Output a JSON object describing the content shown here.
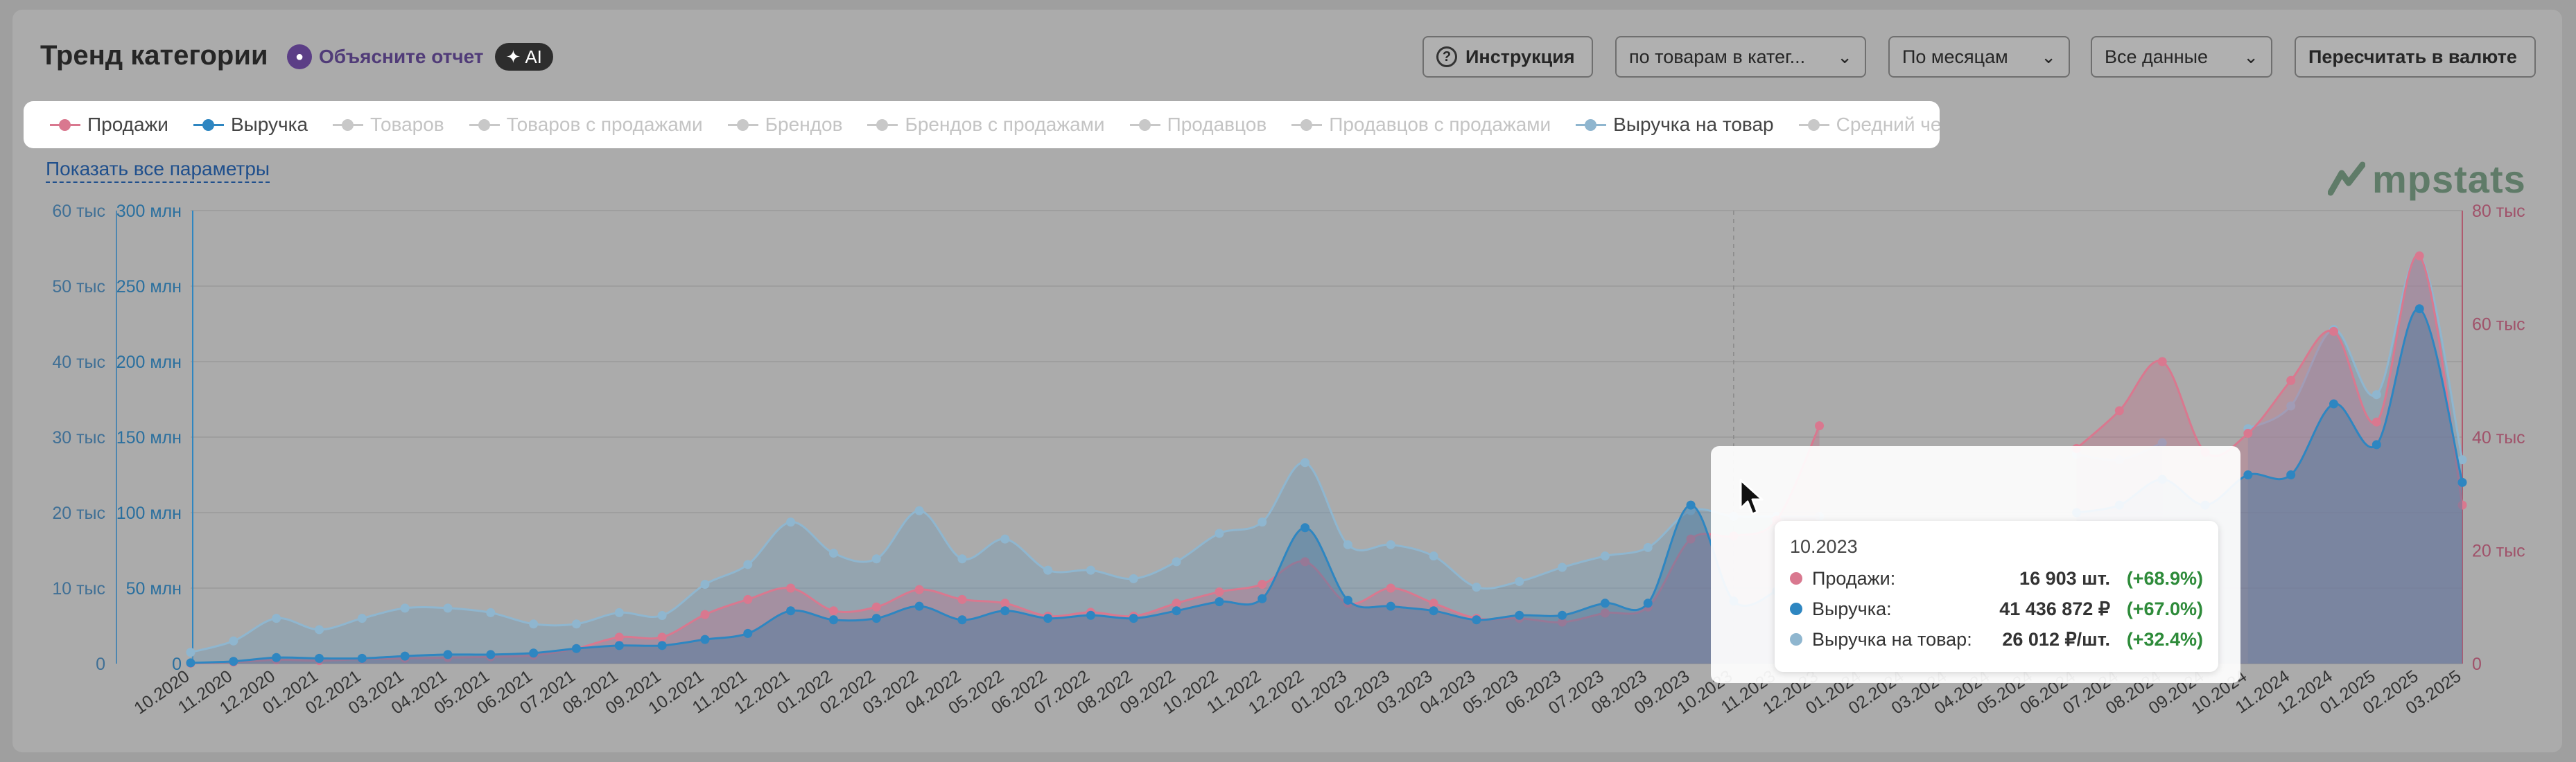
{
  "header": {
    "title": "Тренд категории",
    "explain_label": "Объясните отчет",
    "ai_label": "AI",
    "instruction_label": "Инструкция",
    "group_select": "по товарам в катег...",
    "period_select": "По месяцам",
    "data_select": "Все данные",
    "currency_button": "Пересчитать в валюте"
  },
  "legend": [
    {
      "label": "Продажи",
      "color": "#d9788f",
      "active": true
    },
    {
      "label": "Выручка",
      "color": "#2e86c1",
      "active": true
    },
    {
      "label": "Товаров",
      "color": "#c8c8c8",
      "active": false
    },
    {
      "label": "Товаров с продажами",
      "color": "#c8c8c8",
      "active": false
    },
    {
      "label": "Брендов",
      "color": "#c8c8c8",
      "active": false
    },
    {
      "label": "Брендов с продажами",
      "color": "#c8c8c8",
      "active": false
    },
    {
      "label": "Продавцов",
      "color": "#c8c8c8",
      "active": false
    },
    {
      "label": "Продавцов с продажами",
      "color": "#c8c8c8",
      "active": false
    },
    {
      "label": "Выручка на товар",
      "color": "#8fb6cf",
      "active": true
    },
    {
      "label": "Средний чек",
      "color": "#c8c8c8",
      "active": false
    }
  ],
  "show_all_label": "Показать все параметры",
  "logo_text": "mpstats",
  "chart_data": {
    "type": "area",
    "x": [
      "10.2020",
      "11.2020",
      "12.2020",
      "01.2021",
      "02.2021",
      "03.2021",
      "04.2021",
      "05.2021",
      "06.2021",
      "07.2021",
      "08.2021",
      "09.2021",
      "10.2021",
      "11.2021",
      "12.2021",
      "01.2022",
      "02.2022",
      "03.2022",
      "04.2022",
      "05.2022",
      "06.2022",
      "07.2022",
      "08.2022",
      "09.2022",
      "10.2022",
      "11.2022",
      "12.2022",
      "01.2023",
      "02.2023",
      "03.2023",
      "04.2023",
      "05.2023",
      "06.2023",
      "07.2023",
      "08.2023",
      "09.2023",
      "10.2023",
      "11.2023",
      "12.2023",
      "01.2024",
      "02.2024",
      "03.2024",
      "04.2024",
      "05.2024",
      "06.2024",
      "07.2024",
      "08.2024",
      "09.2024",
      "10.2024",
      "11.2024",
      "12.2024",
      "01.2025",
      "02.2025",
      "03.2025"
    ],
    "axes": {
      "left_sales_ticks": [
        "0",
        "10 тыс",
        "20 тыс",
        "30 тыс",
        "40 тыс",
        "50 тыс",
        "60 тыс"
      ],
      "left_revenue_ticks": [
        "0",
        "50 млн",
        "100 млн",
        "150 млн",
        "200 млн",
        "250 млн",
        "300 млн"
      ],
      "right_ticks": [
        "0",
        "20 тыс",
        "40 тыс",
        "60 тыс",
        "80 тыс"
      ],
      "sales_range": [
        0,
        60000
      ],
      "revenue_range": [
        0,
        300000000
      ],
      "revenue_per_item_range": [
        0,
        80000
      ]
    },
    "series": [
      {
        "name": "Продажи",
        "axis": "sales",
        "color": "#d9788f",
        "values": [
          50,
          200,
          500,
          400,
          600,
          700,
          800,
          900,
          1100,
          2000,
          3500,
          3500,
          6500,
          8500,
          10000,
          7000,
          7500,
          9800,
          8500,
          8000,
          6300,
          6800,
          6300,
          8000,
          9500,
          10500,
          13500,
          8000,
          10000,
          8000,
          6000,
          6000,
          5500,
          6700,
          7500,
          16500,
          16903,
          19000,
          31500,
          null,
          null,
          null,
          null,
          null,
          28500,
          33500,
          40000,
          28000,
          30500,
          37500,
          44000,
          32000,
          54000,
          21000
        ]
      },
      {
        "name": "Выручка",
        "axis": "revenue",
        "color": "#2e86c1",
        "values": [
          500000,
          1500000,
          4000000,
          3500000,
          3500000,
          5000000,
          6000000,
          6000000,
          7000000,
          10000000,
          12000000,
          12000000,
          16000000,
          20000000,
          35000000,
          29000000,
          30000000,
          38000000,
          29000000,
          35000000,
          30000000,
          32000000,
          30000000,
          35000000,
          41000000,
          43000000,
          90000000,
          42000000,
          38000000,
          35000000,
          29000000,
          32000000,
          32000000,
          40000000,
          40000000,
          105000000,
          41436872,
          48000000,
          null,
          null,
          null,
          null,
          null,
          null,
          100000000,
          105000000,
          122000000,
          105000000,
          125000000,
          125000000,
          172000000,
          145000000,
          235000000,
          120000000
        ]
      },
      {
        "name": "Выручка на товар",
        "axis": "rpi",
        "color": "#8fb6cf",
        "values": [
          2000,
          4000,
          8000,
          6000,
          8000,
          9800,
          9800,
          9000,
          7000,
          7000,
          9000,
          8500,
          14000,
          17500,
          25000,
          19500,
          18500,
          27000,
          18500,
          22000,
          16500,
          16500,
          15000,
          18000,
          23000,
          25000,
          35500,
          21000,
          21000,
          19000,
          13500,
          14500,
          17000,
          19000,
          20500,
          27000,
          26012,
          26000,
          26000,
          null,
          null,
          null,
          null,
          null,
          37000,
          36000,
          39000,
          null,
          41500,
          45500,
          59000,
          47500,
          72000,
          36000
        ]
      }
    ],
    "highlight_x": "10.2023"
  },
  "tooltip": {
    "date": "10.2023",
    "rows": [
      {
        "name": "Продажи:",
        "value": "16 903 шт.",
        "change": "(+68.9%)",
        "color": "#d9788f"
      },
      {
        "name": "Выручка:",
        "value": "41 436 872 ₽",
        "change": "(+67.0%)",
        "color": "#2e86c1"
      },
      {
        "name": "Выручка на товар:",
        "value": "26 012 ₽/шт.",
        "change": "(+32.4%)",
        "color": "#8fb6cf"
      }
    ]
  }
}
